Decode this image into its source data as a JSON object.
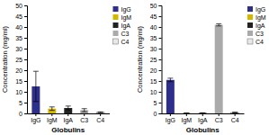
{
  "chart_data": [
    {
      "type": "bar",
      "categories": [
        "IgG",
        "IgM",
        "IgA",
        "C3",
        "C4"
      ],
      "values": [
        12.5,
        2.2,
        2.5,
        1.5,
        0.5
      ],
      "errors": [
        7.0,
        0.8,
        0.9,
        0.7,
        0.2
      ],
      "colors": [
        "#2e2e8b",
        "#d4b800",
        "#222222",
        "#aaaaaa",
        "#e8e8e8"
      ],
      "ylim": [
        0,
        50
      ],
      "yticks": [
        0,
        5,
        10,
        15,
        20,
        25,
        30,
        35,
        40,
        45,
        50
      ],
      "ylabel": "Concentration (mg/ml)",
      "xlabel": "Globulins",
      "legend": "upper right",
      "grid": false
    },
    {
      "type": "bar",
      "categories": [
        "IgG",
        "IgM",
        "IgA",
        "C3",
        "C4"
      ],
      "values": [
        15.5,
        0.15,
        0.2,
        41.0,
        0.4
      ],
      "errors": [
        0.8,
        0.05,
        0.05,
        0.5,
        0.15
      ],
      "colors": [
        "#2e2e8b",
        "#d4b800",
        "#222222",
        "#aaaaaa",
        "#e8e8e8"
      ],
      "ylim": [
        0,
        50
      ],
      "yticks": [
        0,
        5,
        10,
        15,
        20,
        25,
        30,
        35,
        40,
        45,
        50
      ],
      "ylabel": "Concentration (mg/ml)",
      "xlabel": "Globulins",
      "legend": "upper right",
      "grid": false
    }
  ]
}
